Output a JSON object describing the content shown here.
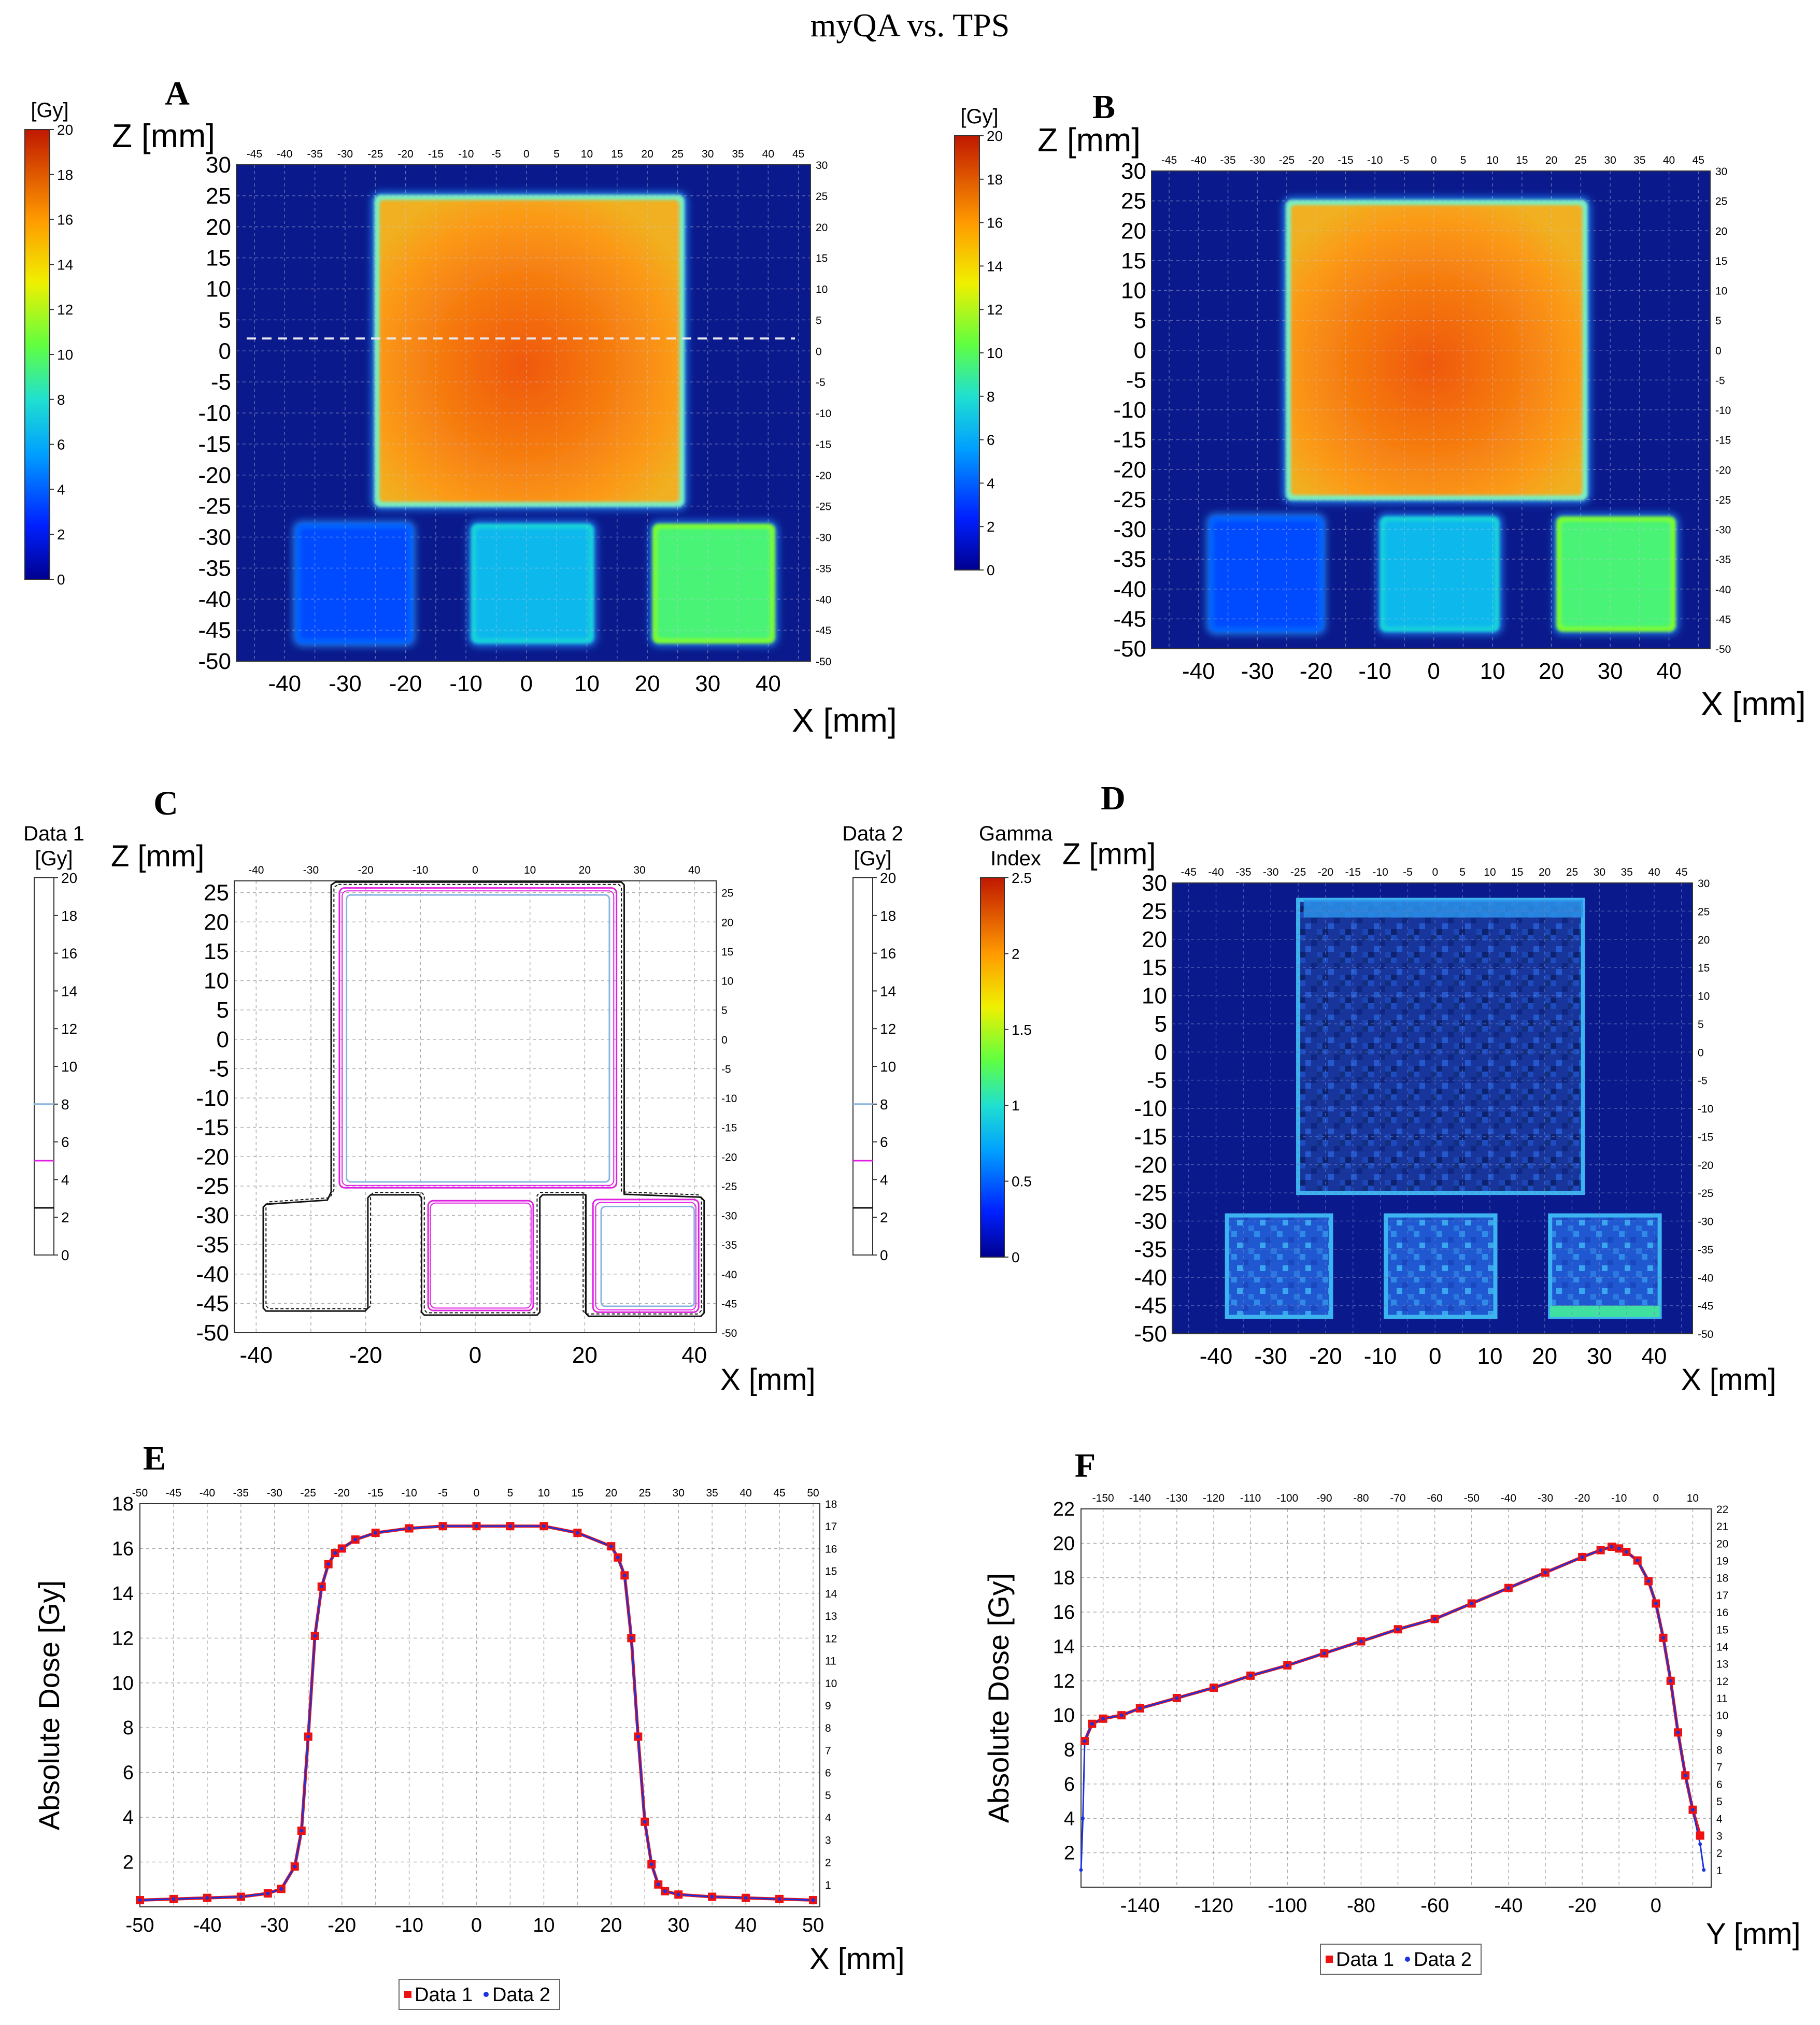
{
  "figure_title": "myQA vs. TPS",
  "colors": {
    "data1_marker": "#ee1111",
    "data2_line": "#1a33dd",
    "grid": "#9a9a9a",
    "field_bg": "#0a1a8c"
  },
  "chart_data": [
    {
      "id": "A",
      "panel_letter": "A",
      "type": "heatmap",
      "title": "",
      "colorbar": {
        "unit_label": "[Gy]",
        "ticks": [
          "20",
          "18",
          "16",
          "14",
          "12",
          "10",
          "8",
          "6",
          "4",
          "2",
          "0"
        ],
        "range": [
          0,
          20
        ]
      },
      "xlabel": "X [mm]",
      "ylabel": "Z [mm]",
      "xlim": [
        -48,
        47
      ],
      "ylim": [
        -50,
        30
      ],
      "x_ticks": [
        "-40",
        "-30",
        "-20",
        "-10",
        "0",
        "10",
        "20",
        "30",
        "40"
      ],
      "x_ticks_top": [
        "-45",
        "-40",
        "-35",
        "-30",
        "-25",
        "-20",
        "-15",
        "-10",
        "-5",
        "0",
        "5",
        "10",
        "15",
        "20",
        "25",
        "30",
        "35",
        "40",
        "45"
      ],
      "y_ticks": [
        "30",
        "25",
        "20",
        "15",
        "10",
        "5",
        "0",
        "-5",
        "-10",
        "-15",
        "-20",
        "-25",
        "-30",
        "-35",
        "-40",
        "-45",
        "-50"
      ],
      "fields": [
        {
          "name": "main field",
          "x": [
            -25,
            26
          ],
          "z": [
            -25,
            25
          ],
          "dose_gy": 17
        },
        {
          "name": "small field 1",
          "x": [
            -38,
            -19
          ],
          "z": [
            -47,
            -28
          ],
          "dose_gy": 3.5
        },
        {
          "name": "small field 2",
          "x": [
            -9,
            11
          ],
          "z": [
            -47,
            -28
          ],
          "dose_gy": 6.5
        },
        {
          "name": "small field 3",
          "x": [
            21,
            41
          ],
          "z": [
            -47,
            -28
          ],
          "dose_gy": 9.5
        }
      ],
      "profile_line_z": 2
    },
    {
      "id": "B",
      "panel_letter": "B",
      "type": "heatmap",
      "title": "",
      "colorbar": {
        "unit_label": "[Gy]",
        "ticks": [
          "20",
          "18",
          "16",
          "14",
          "12",
          "10",
          "8",
          "6",
          "4",
          "2",
          "0"
        ],
        "range": [
          0,
          20
        ]
      },
      "xlabel": "X [mm]",
      "ylabel": "Z [mm]",
      "xlim": [
        -48,
        47
      ],
      "ylim": [
        -50,
        30
      ],
      "x_ticks": [
        "-40",
        "-30",
        "-20",
        "-10",
        "0",
        "10",
        "20",
        "30",
        "40"
      ],
      "x_ticks_top": [
        "-45",
        "-40",
        "-35",
        "-30",
        "-25",
        "-20",
        "-15",
        "-10",
        "-5",
        "0",
        "5",
        "10",
        "15",
        "20",
        "25",
        "30",
        "35",
        "40",
        "45"
      ],
      "y_ticks": [
        "30",
        "25",
        "20",
        "15",
        "10",
        "5",
        "0",
        "-5",
        "-10",
        "-15",
        "-20",
        "-25",
        "-30",
        "-35",
        "-40",
        "-45",
        "-50"
      ],
      "fields": [
        {
          "name": "main field",
          "x": [
            -25,
            26
          ],
          "z": [
            -25,
            25
          ],
          "dose_gy": 17
        },
        {
          "name": "small field 1",
          "x": [
            -38,
            -19
          ],
          "z": [
            -47,
            -28
          ],
          "dose_gy": 3.5
        },
        {
          "name": "small field 2",
          "x": [
            -9,
            11
          ],
          "z": [
            -47,
            -28
          ],
          "dose_gy": 6.5
        },
        {
          "name": "small field 3",
          "x": [
            21,
            41
          ],
          "z": [
            -47,
            -28
          ],
          "dose_gy": 9.5
        }
      ]
    },
    {
      "id": "C",
      "panel_letter": "C",
      "type": "contour",
      "title": "",
      "colorbar_left": {
        "label_line1": "Data 1",
        "label_line2": "[Gy]",
        "ticks": [
          "20",
          "18",
          "16",
          "14",
          "12",
          "10",
          "8",
          "6",
          "4",
          "2",
          "0"
        ],
        "range": [
          0,
          20
        ]
      },
      "colorbar_right": {
        "label_line1": "Data 2",
        "label_line2": "[Gy]",
        "ticks": [
          "20",
          "18",
          "16",
          "14",
          "12",
          "10",
          "8",
          "6",
          "4",
          "2",
          "0"
        ],
        "range": [
          0,
          20
        ]
      },
      "isodose_levels": [
        {
          "dose_gy": 8,
          "color": "#8ab4e0"
        },
        {
          "dose_gy": 5,
          "color": "#e020e0"
        },
        {
          "dose_gy": 2.5,
          "color": "#111111"
        }
      ],
      "xlabel": "X [mm]",
      "ylabel": "Z [mm]",
      "xlim": [
        -44,
        44
      ],
      "ylim": [
        -50,
        27
      ],
      "x_ticks": [
        "-40",
        "-20",
        "0",
        "20",
        "40"
      ],
      "x_ticks_top": [
        "-40",
        "-30",
        "-20",
        "-10",
        "0",
        "10",
        "20",
        "30",
        "40"
      ],
      "y_ticks": [
        "25",
        "20",
        "15",
        "10",
        "5",
        "0",
        "-5",
        "-10",
        "-15",
        "-20",
        "-25",
        "-30",
        "-35",
        "-40",
        "-45",
        "-50"
      ],
      "y_ticks_right": [
        "25",
        "20",
        "15",
        "10",
        "5",
        "0",
        "-5",
        "-10",
        "-15",
        "-20",
        "-25",
        "-30",
        "-35",
        "-40",
        "-45",
        "-50"
      ]
    },
    {
      "id": "D",
      "panel_letter": "D",
      "type": "heatmap",
      "title": "",
      "colorbar": {
        "label_line1": "Gamma",
        "label_line2": "Index",
        "ticks": [
          "2.5",
          "2",
          "1.5",
          "1",
          "0.5",
          "0"
        ],
        "range": [
          0,
          2.5
        ]
      },
      "xlabel": "X [mm]",
      "ylabel": "Z [mm]",
      "xlim": [
        -48,
        47
      ],
      "ylim": [
        -50,
        30
      ],
      "x_ticks": [
        "-40",
        "-30",
        "-20",
        "-10",
        "0",
        "10",
        "20",
        "30",
        "40"
      ],
      "x_ticks_top": [
        "-45",
        "-40",
        "-35",
        "-30",
        "-25",
        "-20",
        "-15",
        "-10",
        "-5",
        "0",
        "5",
        "10",
        "15",
        "20",
        "25",
        "30",
        "35",
        "40",
        "45"
      ],
      "y_ticks": [
        "30",
        "25",
        "20",
        "15",
        "10",
        "5",
        "0",
        "-5",
        "-10",
        "-15",
        "-20",
        "-25",
        "-30",
        "-35",
        "-40",
        "-45",
        "-50"
      ]
    },
    {
      "id": "E",
      "panel_letter": "E",
      "type": "line",
      "title": "",
      "xlabel": "X [mm]",
      "ylabel": "Absolute Dose [Gy]",
      "xlim": [
        -50,
        51
      ],
      "ylim": [
        0,
        18
      ],
      "x_ticks": [
        "-50",
        "-40",
        "-30",
        "-20",
        "-10",
        "0",
        "10",
        "20",
        "30",
        "40",
        "50"
      ],
      "x_ticks_top": [
        "-50",
        "-45",
        "-40",
        "-35",
        "-30",
        "-25",
        "-20",
        "-15",
        "-10",
        "-5",
        "0",
        "5",
        "10",
        "15",
        "20",
        "25",
        "30",
        "35",
        "40",
        "45",
        "50"
      ],
      "y_ticks": [
        "2",
        "4",
        "6",
        "8",
        "10",
        "12",
        "14",
        "16",
        "18"
      ],
      "y_ticks_right": [
        "1",
        "2",
        "3",
        "4",
        "5",
        "6",
        "7",
        "8",
        "9",
        "10",
        "11",
        "12",
        "13",
        "14",
        "15",
        "16",
        "17",
        "18"
      ],
      "legend": [
        "Data 1",
        "Data 2"
      ],
      "series": [
        {
          "name": "Data 1",
          "x": [
            -50,
            -45,
            -40,
            -35,
            -31,
            -29,
            -27,
            -26,
            -25,
            -24,
            -23,
            -22,
            -21,
            -20,
            -18,
            -15,
            -10,
            -5,
            0,
            5,
            10,
            15,
            20,
            21,
            22,
            23,
            24,
            25,
            26,
            27,
            28,
            30,
            35,
            40,
            45,
            50
          ],
          "y": [
            0.3,
            0.35,
            0.4,
            0.45,
            0.6,
            0.8,
            1.8,
            3.4,
            7.6,
            12.1,
            14.3,
            15.3,
            15.8,
            16.0,
            16.4,
            16.7,
            16.9,
            17.0,
            17.0,
            17.0,
            17.0,
            16.7,
            16.1,
            15.6,
            14.8,
            12.0,
            7.6,
            3.8,
            1.9,
            1.0,
            0.7,
            0.55,
            0.45,
            0.4,
            0.35,
            0.3
          ]
        },
        {
          "name": "Data 2",
          "x": [
            -50,
            -45,
            -40,
            -35,
            -31,
            -29,
            -27,
            -26,
            -25,
            -24,
            -23,
            -22,
            -21,
            -20,
            -18,
            -15,
            -10,
            -5,
            0,
            5,
            10,
            15,
            20,
            21,
            22,
            23,
            24,
            25,
            26,
            27,
            28,
            30,
            35,
            40,
            45,
            50
          ],
          "y": [
            0.3,
            0.35,
            0.4,
            0.45,
            0.6,
            0.8,
            1.8,
            3.4,
            7.6,
            12.1,
            14.3,
            15.3,
            15.8,
            16.0,
            16.4,
            16.7,
            16.9,
            17.0,
            17.0,
            17.0,
            17.0,
            16.7,
            16.1,
            15.6,
            14.8,
            12.0,
            7.6,
            3.8,
            1.9,
            1.0,
            0.7,
            0.55,
            0.45,
            0.4,
            0.35,
            0.3
          ]
        }
      ]
    },
    {
      "id": "F",
      "panel_letter": "F",
      "type": "line",
      "title": "",
      "xlabel": "Y [mm]",
      "ylabel": "Absolute Dose [Gy]",
      "xlim": [
        -156,
        15
      ],
      "ylim": [
        0,
        22
      ],
      "x_ticks": [
        "-140",
        "-120",
        "-100",
        "-80",
        "-60",
        "-40",
        "-20",
        "0"
      ],
      "x_ticks_top": [
        "-150",
        "-140",
        "-130",
        "-120",
        "-110",
        "-100",
        "-90",
        "-80",
        "-70",
        "-60",
        "-50",
        "-40",
        "-30",
        "-20",
        "-10",
        "0",
        "10"
      ],
      "y_ticks": [
        "2",
        "4",
        "6",
        "8",
        "10",
        "12",
        "14",
        "16",
        "18",
        "20",
        "22"
      ],
      "y_ticks_right": [
        "1",
        "2",
        "3",
        "4",
        "5",
        "6",
        "7",
        "8",
        "9",
        "10",
        "11",
        "12",
        "13",
        "14",
        "15",
        "16",
        "17",
        "18",
        "19",
        "20",
        "21",
        "22"
      ],
      "legend": [
        "Data 1",
        "Data 2"
      ],
      "series": [
        {
          "name": "Data 1",
          "x": [
            -155,
            -153,
            -150,
            -145,
            -140,
            -130,
            -120,
            -110,
            -100,
            -90,
            -80,
            -70,
            -60,
            -50,
            -40,
            -30,
            -20,
            -15,
            -12,
            -10,
            -8,
            -5,
            -2,
            0,
            2,
            4,
            6,
            8,
            10,
            12
          ],
          "y": [
            8.5,
            9.5,
            9.8,
            10.0,
            10.4,
            11.0,
            11.6,
            12.3,
            12.9,
            13.6,
            14.3,
            15.0,
            15.6,
            16.5,
            17.4,
            18.3,
            19.2,
            19.6,
            19.8,
            19.7,
            19.5,
            19.0,
            17.8,
            16.5,
            14.5,
            12.0,
            9.0,
            6.5,
            4.5,
            3.0
          ]
        },
        {
          "name": "Data 2",
          "x": [
            -156,
            -155.5,
            -155,
            -153,
            -150,
            -145,
            -140,
            -130,
            -120,
            -110,
            -100,
            -90,
            -80,
            -70,
            -60,
            -50,
            -40,
            -30,
            -20,
            -15,
            -12,
            -10,
            -8,
            -5,
            -2,
            0,
            2,
            4,
            6,
            8,
            10,
            12,
            13
          ],
          "y": [
            1.0,
            4.0,
            8.5,
            9.5,
            9.8,
            10.0,
            10.4,
            11.0,
            11.6,
            12.3,
            12.9,
            13.6,
            14.3,
            15.0,
            15.6,
            16.5,
            17.4,
            18.3,
            19.2,
            19.6,
            19.8,
            19.7,
            19.5,
            19.0,
            17.8,
            16.5,
            14.5,
            12.0,
            9.0,
            6.5,
            4.5,
            2.5,
            1.0
          ]
        }
      ]
    }
  ]
}
